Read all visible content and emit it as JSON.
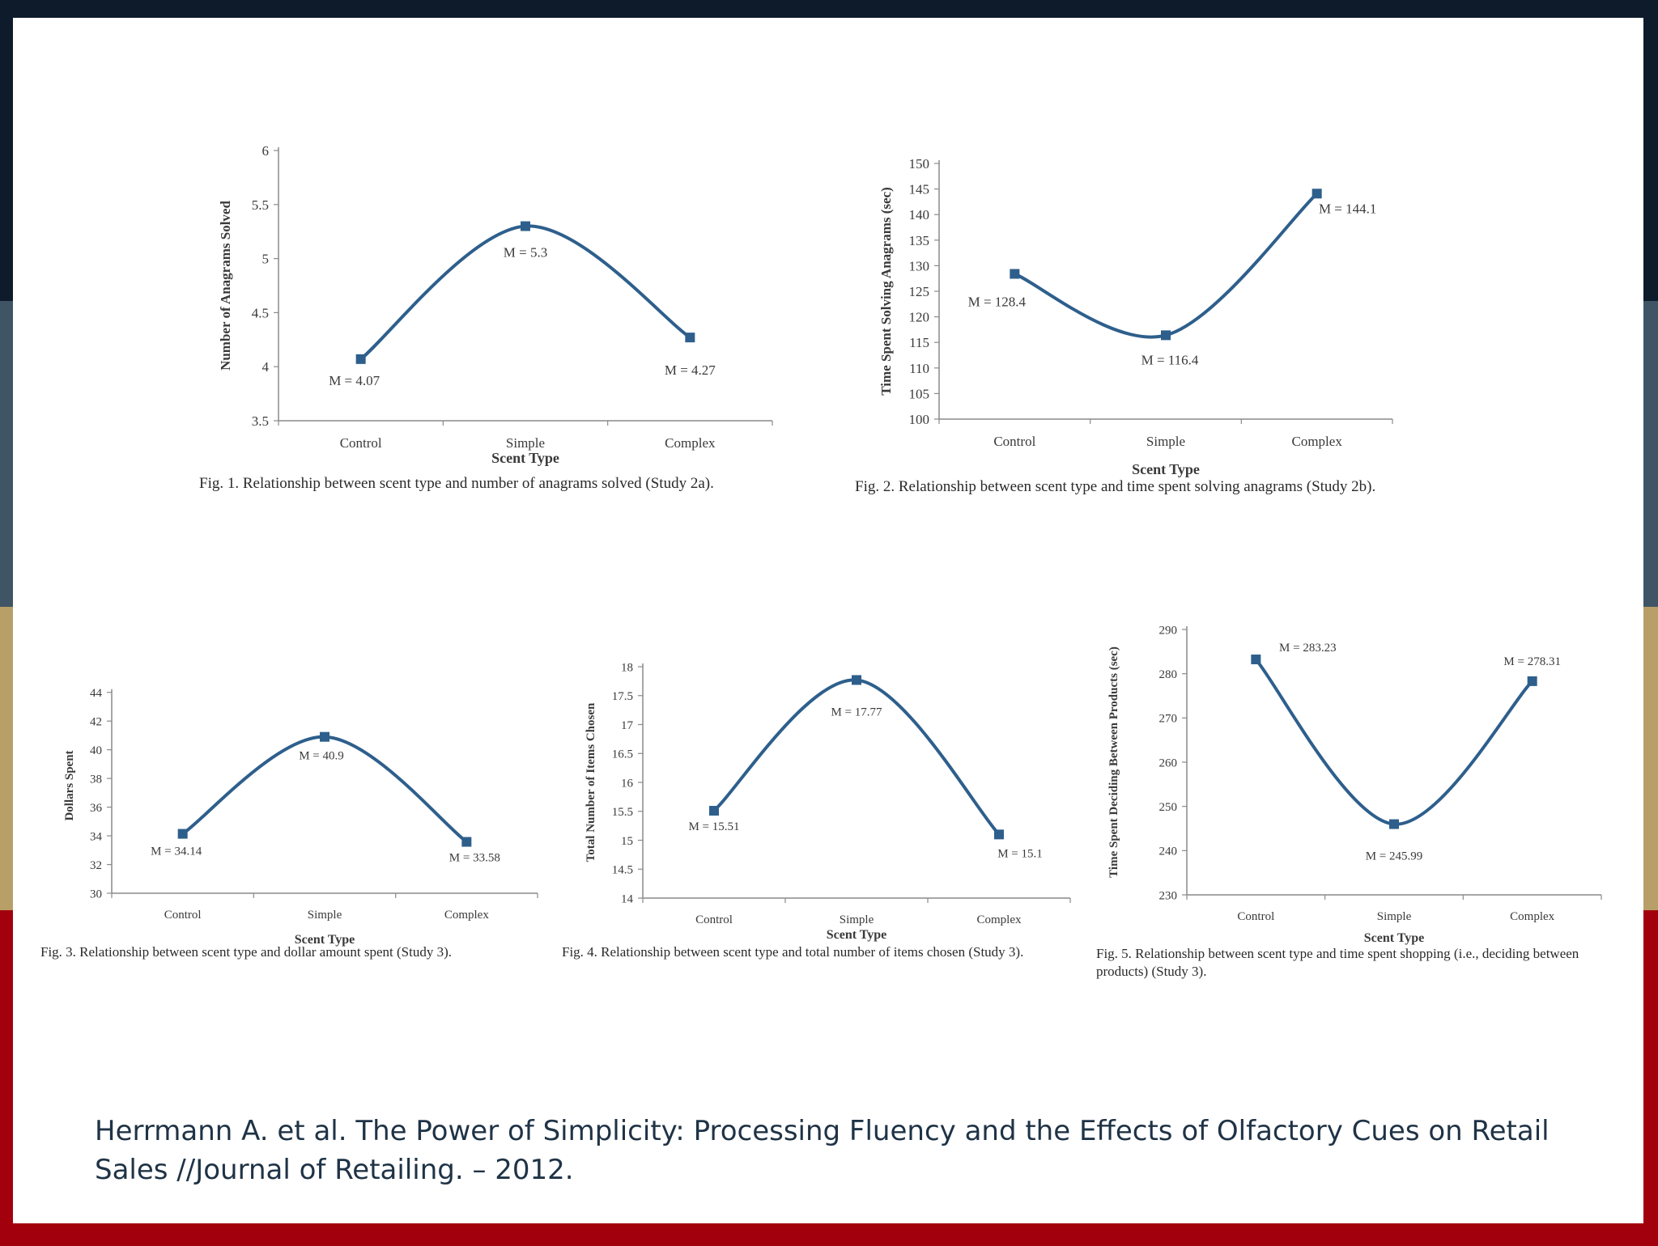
{
  "chart_data": [
    {
      "type": "line",
      "categories": [
        "Control",
        "Simple",
        "Complex"
      ],
      "series": [
        {
          "values": [
            4.07,
            5.3,
            4.27
          ]
        }
      ],
      "data_labels": [
        "M = 4.07",
        "M = 5.3",
        "M = 4.27"
      ],
      "xlabel": "Scent Type",
      "ylabel": "Number of Anagrams Solved",
      "ylim": [
        3.5,
        6
      ],
      "yticks": [
        3.5,
        4,
        4.5,
        5,
        5.5,
        6
      ],
      "ytick_labels": [
        "3.5",
        "4",
        "4.5",
        "5",
        "5.5",
        "6"
      ],
      "grid": false,
      "line_color": "#2e5f8c",
      "caption": "Fig. 1.  Relationship between scent type and number of anagrams solved (Study 2a)."
    },
    {
      "type": "line",
      "categories": [
        "Control",
        "Simple",
        "Complex"
      ],
      "series": [
        {
          "values": [
            128.4,
            116.4,
            144.1
          ]
        }
      ],
      "data_labels": [
        "M = 128.4",
        "M = 116.4",
        "M = 144.1"
      ],
      "xlabel": "Scent Type",
      "ylabel": "Time Spent Solving Anagrams (sec)",
      "ylim": [
        100,
        150
      ],
      "yticks": [
        100,
        105,
        110,
        115,
        120,
        125,
        130,
        135,
        140,
        145,
        150
      ],
      "ytick_labels": [
        "100",
        "105",
        "110",
        "115",
        "120",
        "125",
        "130",
        "135",
        "140",
        "145",
        "150"
      ],
      "grid": false,
      "line_color": "#2e5f8c",
      "caption": "Fig. 2.  Relationship between scent type and time spent solving anagrams (Study 2b)."
    },
    {
      "type": "line",
      "categories": [
        "Control",
        "Simple",
        "Complex"
      ],
      "series": [
        {
          "values": [
            34.14,
            40.9,
            33.58
          ]
        }
      ],
      "data_labels": [
        "M = 34.14",
        "M = 40.9",
        "M = 33.58"
      ],
      "xlabel": "Scent Type",
      "ylabel": "Dollars Spent",
      "ylim": [
        30,
        45
      ],
      "yticks": [
        30,
        32,
        34,
        36,
        38,
        40,
        42,
        44
      ],
      "ytick_labels": [
        "30",
        "32",
        "34",
        "36",
        "38",
        "40",
        "42",
        "44"
      ],
      "grid": false,
      "line_color": "#2e5f8c",
      "caption": "Fig. 3.  Relationship between scent type and dollar amount spent (Study 3)."
    },
    {
      "type": "line",
      "categories": [
        "Control",
        "Simple",
        "Complex"
      ],
      "series": [
        {
          "values": [
            15.51,
            17.77,
            15.1
          ]
        }
      ],
      "data_labels": [
        "M = 15.51",
        "M = 17.77",
        "M = 15.1"
      ],
      "xlabel": "Scent Type",
      "ylabel": "Total Number of Items Chosen",
      "ylim": [
        14,
        18
      ],
      "yticks": [
        14,
        14.5,
        15,
        15.5,
        16,
        16.5,
        17,
        17.5,
        18
      ],
      "ytick_labels": [
        "14",
        "14.5",
        "15",
        "15.5",
        "16",
        "16.5",
        "17",
        "17.5",
        "18"
      ],
      "grid": false,
      "line_color": "#2e5f8c",
      "caption": "Fig. 4.  Relationship between scent type and total number of items chosen (Study 3)."
    },
    {
      "type": "line",
      "categories": [
        "Control",
        "Simple",
        "Complex"
      ],
      "series": [
        {
          "values": [
            283.23,
            245.99,
            278.31
          ]
        }
      ],
      "data_labels": [
        "M = 283.23",
        "M = 245.99",
        "M = 278.31"
      ],
      "xlabel": "Scent Type",
      "ylabel": "Time Spent Deciding Between Products (sec)",
      "ylim": [
        230,
        290
      ],
      "yticks": [
        230,
        240,
        250,
        260,
        270,
        280,
        290
      ],
      "ytick_labels": [
        "230",
        "240",
        "250",
        "260",
        "270",
        "280",
        "290"
      ],
      "grid": false,
      "line_color": "#2e5f8c",
      "caption": "Fig. 5.  Relationship between scent type and time spent shopping (i.e., deciding between products) (Study 3)."
    }
  ],
  "citation": "Herrmann A. et al. The Power of Simplicity: Processing Fluency and the Effects of Olfactory Cues on Retail Sales //Journal of Retailing. – 2012.",
  "colors": {
    "line": "#2e5f8c",
    "band_navy": "#0d1b2a",
    "band_slate": "#3f5565",
    "band_gold": "#b79f67",
    "band_red": "#a3000d"
  }
}
